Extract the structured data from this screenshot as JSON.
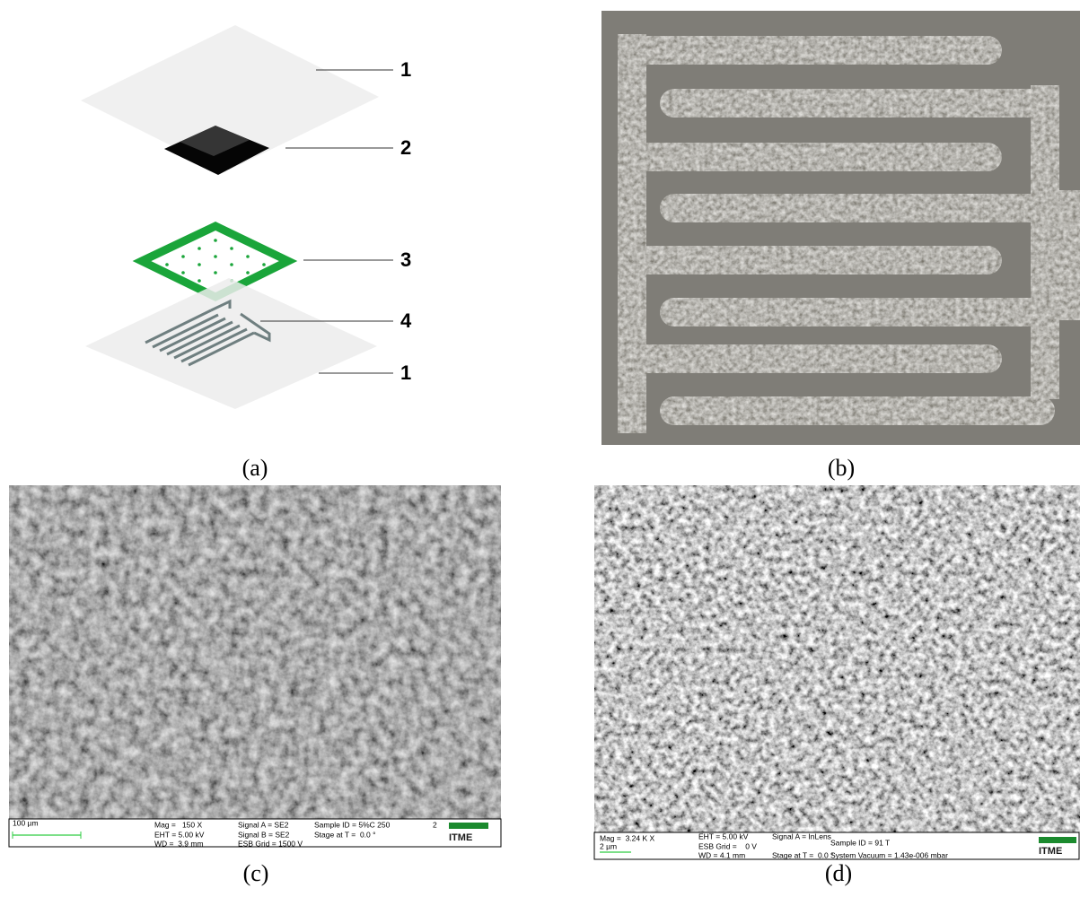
{
  "panel_a": {
    "label": "(a)",
    "layer_labels": [
      "1",
      "2",
      "3",
      "4",
      "1"
    ]
  },
  "panel_b": {
    "label": "(b)"
  },
  "panel_c": {
    "label": "(c)",
    "scale_bar": "100 µm",
    "info": [
      "Mag =   150 X",
      "EHT = 5.00 kV",
      "WD =  3.9 mm",
      "Signal A = SE2",
      "Signal B = SE2",
      "ESB Grid = 1500 V",
      "Sample ID = 5%C 250",
      "2",
      "Stage at T =  0.0 °"
    ],
    "logo": "ITME"
  },
  "panel_d": {
    "label": "(d)",
    "scale_bar": "2 µm",
    "info": [
      "Mag =  3.24 K X",
      "EHT = 5.00 kV",
      "ESB Grid =    0 V",
      "WD = 4.1 mm",
      "Signal A = InLens",
      "Stage at T =  0.0 °",
      "Sample ID = 91 T",
      "System Vacuum = 1.43e-006 mbar"
    ],
    "logo": "ITME"
  }
}
